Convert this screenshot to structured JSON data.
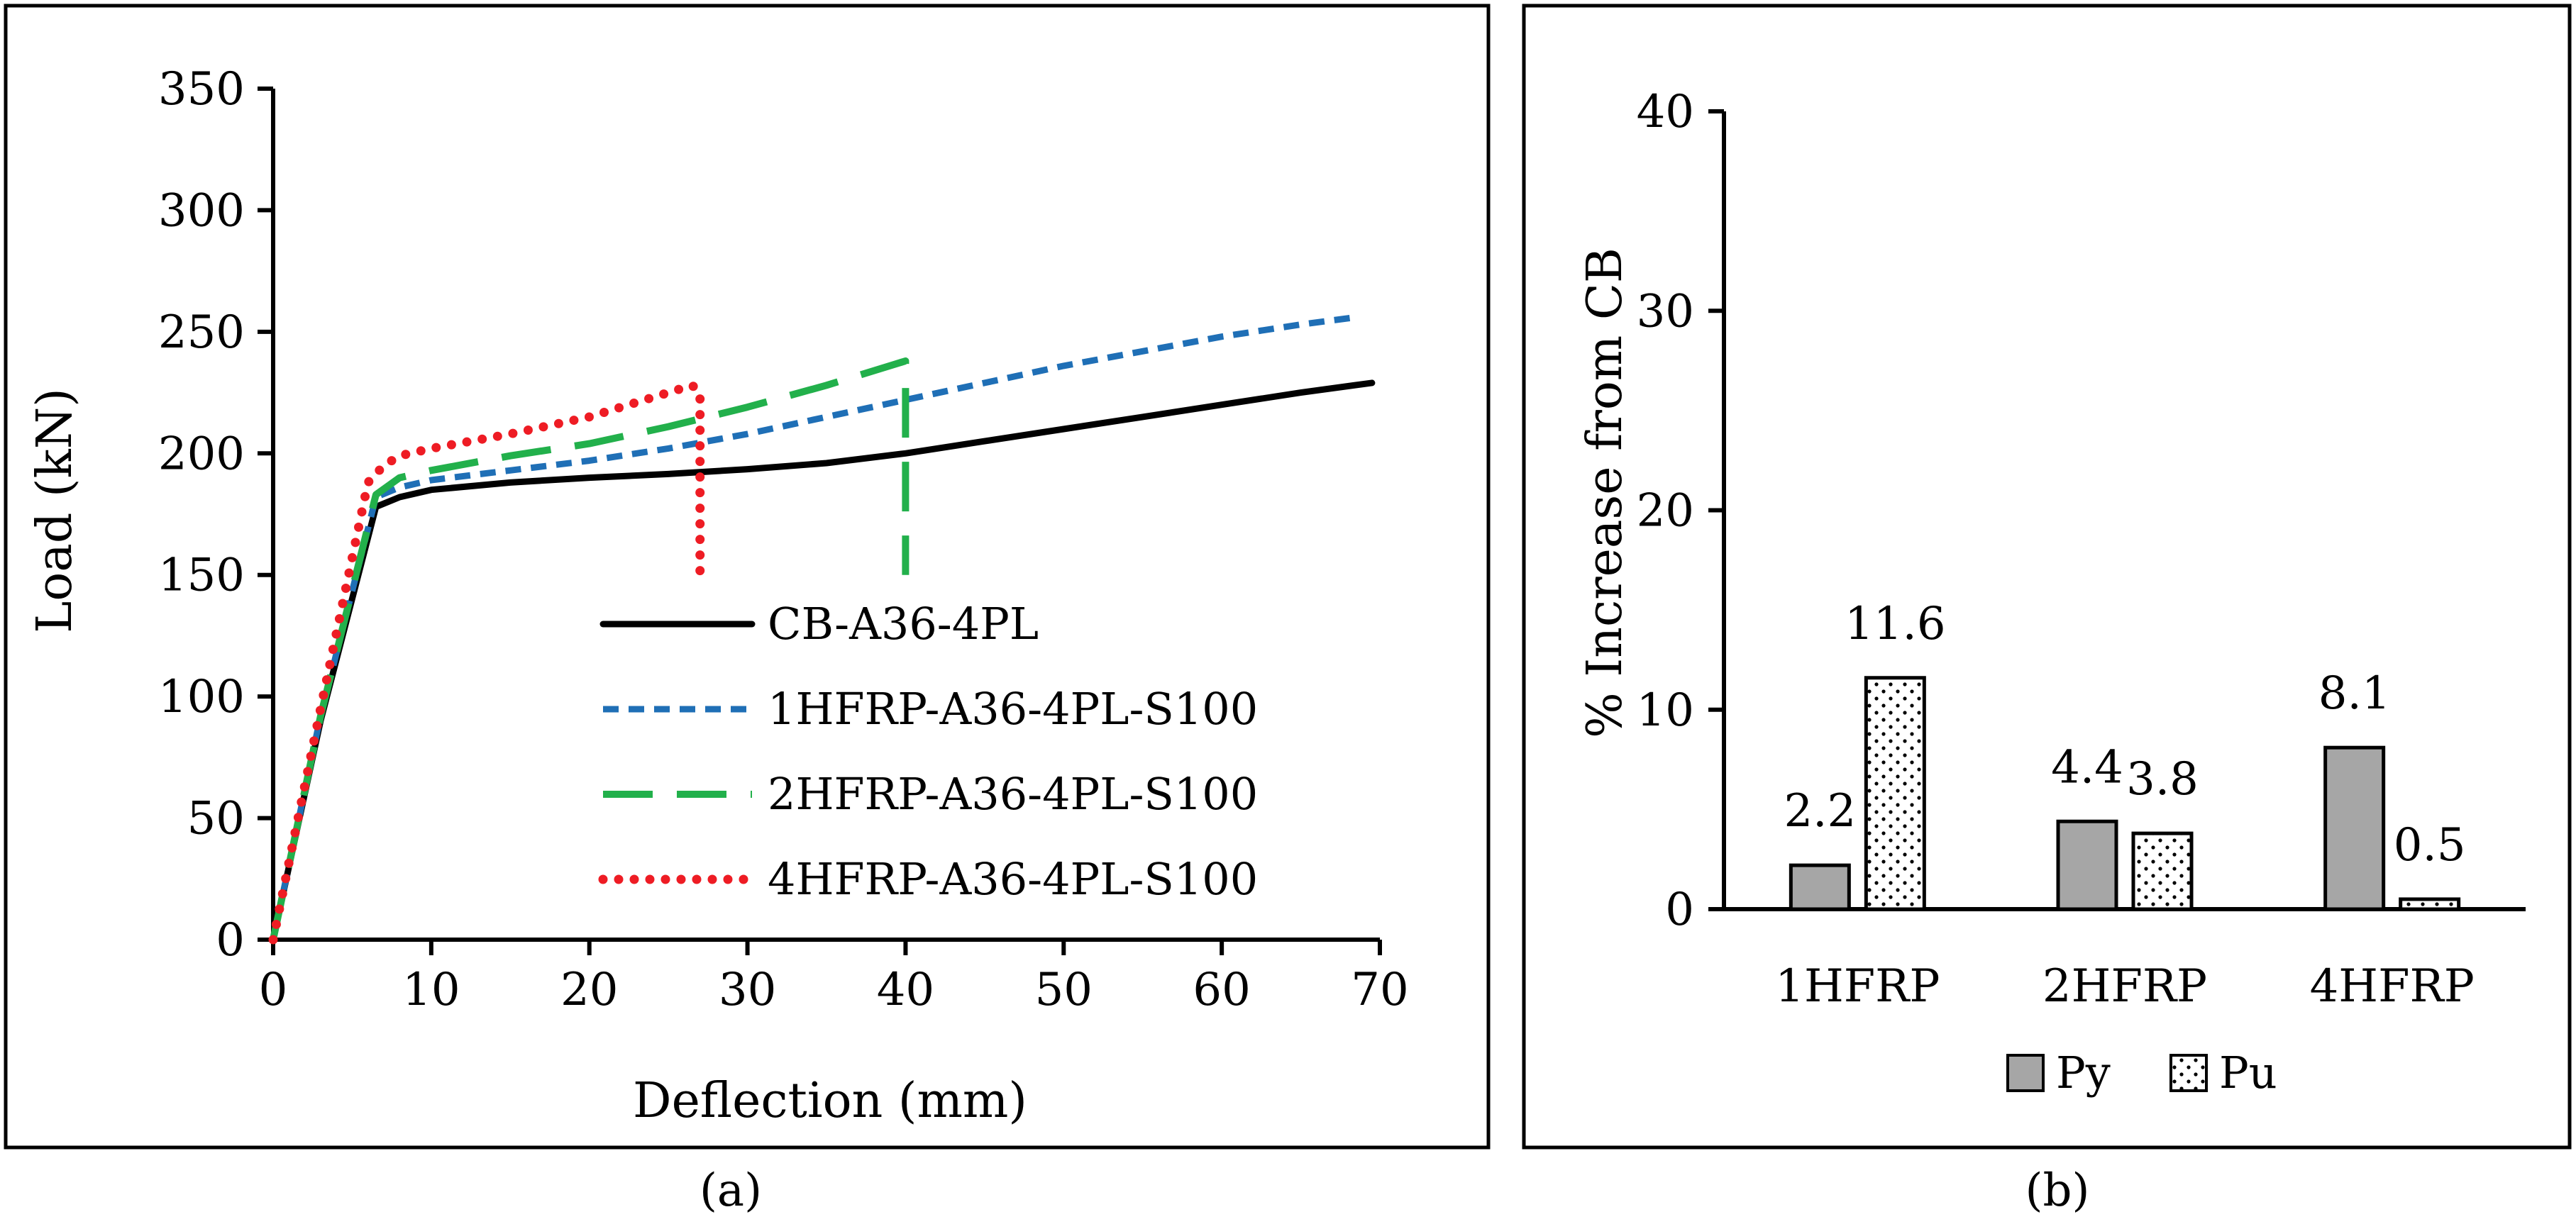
{
  "chart_data": [
    {
      "type": "line",
      "caption": "(a)",
      "xlabel": "Deflection (mm)",
      "ylabel": "Load (kN)",
      "xlim": [
        0,
        70
      ],
      "ylim": [
        0,
        350
      ],
      "xticks": [
        0,
        10,
        20,
        30,
        40,
        50,
        60,
        70
      ],
      "yticks": [
        0,
        50,
        100,
        150,
        200,
        250,
        300,
        350
      ],
      "grid": false,
      "legend": "center-right",
      "series": [
        {
          "name": "CB-A36-4PL",
          "color": "#000000",
          "dash": "solid",
          "x": [
            0,
            3,
            6.5,
            8,
            10,
            15,
            20,
            25,
            30,
            35,
            40,
            45,
            50,
            55,
            60,
            65,
            69.5
          ],
          "y": [
            0,
            90,
            178,
            182,
            185,
            188,
            190,
            191.5,
            193.5,
            196,
            200,
            205,
            210,
            215,
            220,
            225,
            229
          ]
        },
        {
          "name": "1HFRP-A36-4PL-S100",
          "color": "#1f6fb6",
          "dash": "short-dash",
          "x": [
            0,
            3,
            6.5,
            8,
            10,
            15,
            20,
            25,
            30,
            35,
            40,
            45,
            50,
            55,
            60,
            65,
            68.5
          ],
          "y": [
            0,
            92,
            182,
            186,
            189,
            193,
            197,
            202,
            208,
            215,
            222,
            229,
            236,
            242,
            248,
            253,
            256
          ]
        },
        {
          "name": "2HFRP-A36-4PL-S100",
          "color": "#22b04b",
          "dash": "long-dash",
          "x": [
            0,
            3,
            6.5,
            8,
            10,
            15,
            20,
            25,
            30,
            35,
            40,
            40,
            40
          ],
          "y": [
            0,
            92,
            183,
            190,
            193,
            199,
            204,
            211,
            219,
            228,
            238,
            230,
            150
          ]
        },
        {
          "name": "4HFRP-A36-4PL-S100",
          "color": "#ee1c24",
          "dash": "dotted",
          "x": [
            0,
            3,
            6,
            7,
            8,
            10,
            15,
            20,
            25,
            26.5,
            27,
            27
          ],
          "y": [
            0,
            95,
            188,
            195,
            199,
            202,
            208,
            215,
            225,
            228,
            225,
            150
          ]
        }
      ]
    },
    {
      "type": "bar",
      "caption": "(b)",
      "xlabel": "",
      "ylabel": "% Increase from CB",
      "ylim": [
        0,
        40
      ],
      "yticks": [
        0,
        10,
        20,
        30,
        40
      ],
      "grid": false,
      "legend": "bottom",
      "categories": [
        "1HFRP",
        "2HFRP",
        "4HFRP"
      ],
      "series": [
        {
          "name": "Py",
          "pattern": "solid-gray",
          "color": "#a6a6a6",
          "values": [
            2.2,
            4.4,
            8.1
          ],
          "labels": [
            "2.2",
            "4.4",
            "8.1"
          ]
        },
        {
          "name": "Pu",
          "pattern": "dotted-white",
          "color": "#ffffff",
          "values": [
            11.6,
            3.8,
            0.5
          ],
          "labels": [
            "11.6",
            "3.8",
            "0.5"
          ]
        }
      ]
    }
  ]
}
